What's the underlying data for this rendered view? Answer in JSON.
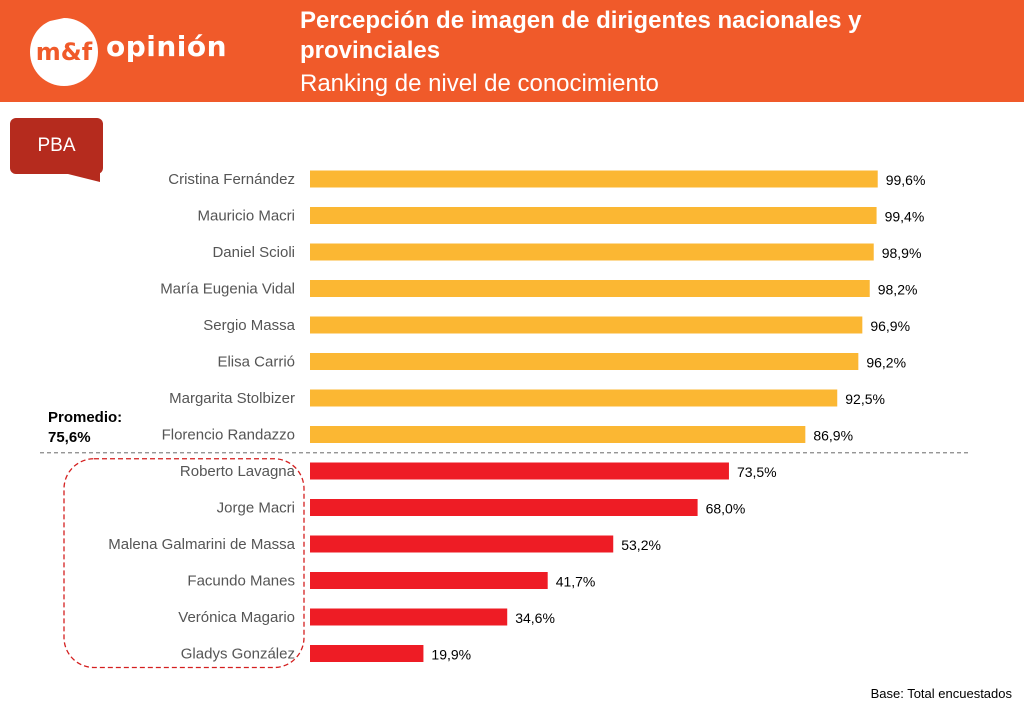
{
  "header": {
    "brand": "m&f opinión",
    "title": "Percepción de imagen de dirigentes nacionales y provinciales",
    "subtitle": "Ranking de nivel de conocimiento"
  },
  "region_label": "PBA",
  "average": {
    "label": "Promedio:",
    "value": "75,6%"
  },
  "footer": {
    "base_note": "Base: Total encuestados"
  },
  "colors": {
    "header_bg": "#f05a2a",
    "above_average": "#fbb733",
    "below_average": "#ee1c25",
    "badge": "#b52b1e"
  },
  "chart_data": {
    "type": "bar",
    "orientation": "horizontal",
    "title": "Ranking de nivel de conocimiento",
    "xlim": [
      0,
      100
    ],
    "average_value": 75.6,
    "categories": [
      "Cristina Fernández",
      "Mauricio Macri",
      "Daniel Scioli",
      "María Eugenia Vidal",
      "Sergio Massa",
      "Elisa Carrió",
      "Margarita Stolbizer",
      "Florencio Randazzo",
      "Roberto Lavagna",
      "Jorge Macri",
      "Malena Galmarini de Massa",
      "Facundo Manes",
      "Verónica Magario",
      "Gladys González"
    ],
    "values": [
      99.6,
      99.4,
      98.9,
      98.2,
      96.9,
      96.2,
      92.5,
      86.9,
      73.5,
      68.0,
      53.2,
      41.7,
      34.6,
      19.9
    ],
    "labels": [
      "99,6%",
      "99,4%",
      "98,9%",
      "98,2%",
      "96,9%",
      "96,2%",
      "92,5%",
      "86,9%",
      "73,5%",
      "68,0%",
      "53,2%",
      "41,7%",
      "34,6%",
      "19,9%"
    ]
  }
}
